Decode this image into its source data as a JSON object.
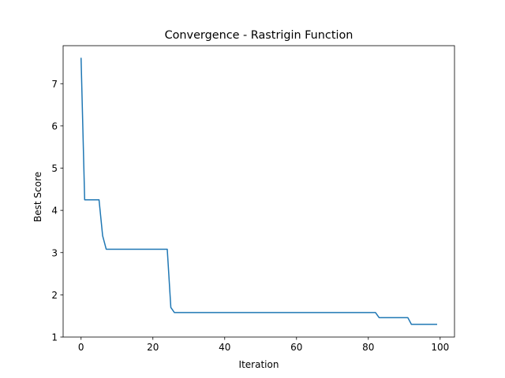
{
  "chart_data": {
    "type": "line",
    "title": "Convergence - Rastrigin Function",
    "xlabel": "Iteration",
    "ylabel": "Best Score",
    "xlim": [
      -5,
      104
    ],
    "ylim": [
      1.0,
      7.9
    ],
    "xticks": [
      0,
      20,
      40,
      60,
      80,
      100
    ],
    "yticks": [
      1,
      2,
      3,
      4,
      5,
      6,
      7
    ],
    "grid": false,
    "legend": "none",
    "line_color": "#1f77b4",
    "series": [
      {
        "x": [
          0,
          1,
          5,
          6,
          7,
          24,
          25,
          26,
          82,
          83,
          91,
          92,
          99
        ],
        "values": [
          7.6,
          4.25,
          4.25,
          3.4,
          3.08,
          3.08,
          1.7,
          1.58,
          1.58,
          1.46,
          1.46,
          1.3,
          1.3
        ]
      }
    ]
  }
}
